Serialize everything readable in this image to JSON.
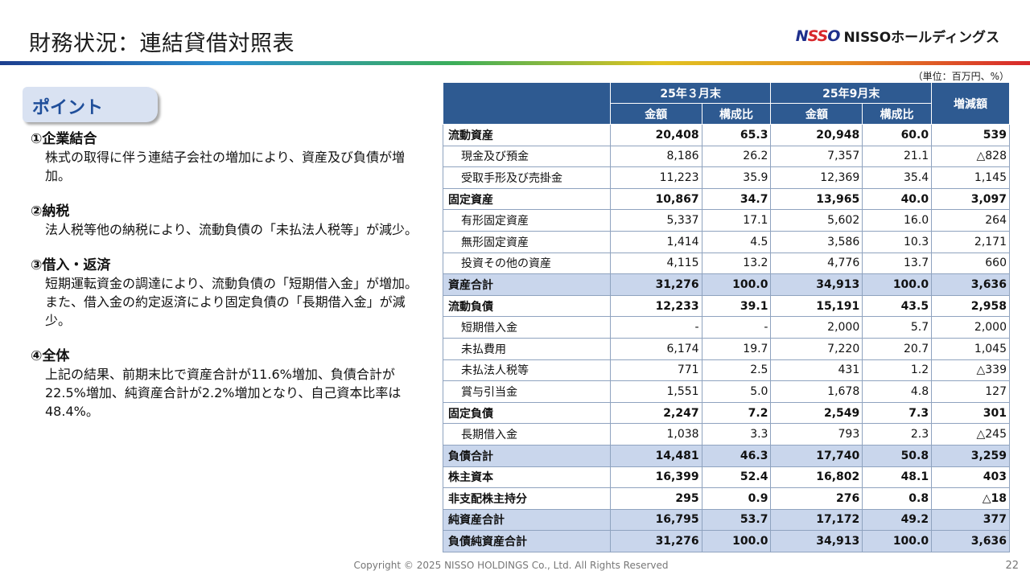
{
  "header": {
    "title": "財務状況：連結貸借対照表",
    "logo_mark_1": "N",
    "logo_mark_2": "SS",
    "logo_mark_3": "O",
    "logo_text": "NISSOホールディングス"
  },
  "unit": "（単位：百万円、%）",
  "points": {
    "tab_label": "ポイント",
    "items": [
      {
        "heading": "①企業結合",
        "body": "株式の取得に伴う連結子会社の増加により、資産及び負債が増加。"
      },
      {
        "heading": "②納税",
        "body": "法人税等他の納税により、流動負債の「未払法人税等」が減少。"
      },
      {
        "heading": "③借入・返済",
        "body": "短期運転資金の調達により、流動負債の「短期借入金」が増加。また、借入金の約定返済により固定負債の「長期借入金」が減少。"
      },
      {
        "heading": "④全体",
        "body": "上記の結果、前期末比で資産合計が11.6%増加、負債合計が22.5%増加、純資産合計が2.2%増加となり、自己資本比率は48.4%。"
      }
    ]
  },
  "table": {
    "period1": "25年３月末",
    "period2": "25年9月末",
    "change": "増減額",
    "amount": "金額",
    "ratio": "構成比",
    "rows": [
      {
        "label": "流動資産",
        "a1": "20,408",
        "r1": "65.3",
        "a2": "20,948",
        "r2": "60.0",
        "d": "539",
        "style": "bold"
      },
      {
        "label": "現金及び預金",
        "a1": "8,186",
        "r1": "26.2",
        "a2": "7,357",
        "r2": "21.1",
        "d": "△828",
        "style": "sub"
      },
      {
        "label": "受取手形及び売掛金",
        "a1": "11,223",
        "r1": "35.9",
        "a2": "12,369",
        "r2": "35.4",
        "d": "1,145",
        "style": "sub"
      },
      {
        "label": "固定資産",
        "a1": "10,867",
        "r1": "34.7",
        "a2": "13,965",
        "r2": "40.0",
        "d": "3,097",
        "style": "bold"
      },
      {
        "label": "有形固定資産",
        "a1": "5,337",
        "r1": "17.1",
        "a2": "5,602",
        "r2": "16.0",
        "d": "264",
        "style": "sub"
      },
      {
        "label": "無形固定資産",
        "a1": "1,414",
        "r1": "4.5",
        "a2": "3,586",
        "r2": "10.3",
        "d": "2,171",
        "style": "sub"
      },
      {
        "label": "投資その他の資産",
        "a1": "4,115",
        "r1": "13.2",
        "a2": "4,776",
        "r2": "13.7",
        "d": "660",
        "style": "sub"
      },
      {
        "label": "資産合計",
        "a1": "31,276",
        "r1": "100.0",
        "a2": "34,913",
        "r2": "100.0",
        "d": "3,636",
        "style": "total"
      },
      {
        "label": "流動負債",
        "a1": "12,233",
        "r1": "39.1",
        "a2": "15,191",
        "r2": "43.5",
        "d": "2,958",
        "style": "bold"
      },
      {
        "label": "短期借入金",
        "a1": "-",
        "r1": "-",
        "a2": "2,000",
        "r2": "5.7",
        "d": "2,000",
        "style": "sub"
      },
      {
        "label": "未払費用",
        "a1": "6,174",
        "r1": "19.7",
        "a2": "7,220",
        "r2": "20.7",
        "d": "1,045",
        "style": "sub"
      },
      {
        "label": "未払法人税等",
        "a1": "771",
        "r1": "2.5",
        "a2": "431",
        "r2": "1.2",
        "d": "△339",
        "style": "sub"
      },
      {
        "label": "賞与引当金",
        "a1": "1,551",
        "r1": "5.0",
        "a2": "1,678",
        "r2": "4.8",
        "d": "127",
        "style": "sub"
      },
      {
        "label": "固定負債",
        "a1": "2,247",
        "r1": "7.2",
        "a2": "2,549",
        "r2": "7.3",
        "d": "301",
        "style": "bold"
      },
      {
        "label": "長期借入金",
        "a1": "1,038",
        "r1": "3.3",
        "a2": "793",
        "r2": "2.3",
        "d": "△245",
        "style": "sub"
      },
      {
        "label": "負債合計",
        "a1": "14,481",
        "r1": "46.3",
        "a2": "17,740",
        "r2": "50.8",
        "d": "3,259",
        "style": "total"
      },
      {
        "label": "株主資本",
        "a1": "16,399",
        "r1": "52.4",
        "a2": "16,802",
        "r2": "48.1",
        "d": "403",
        "style": "bold"
      },
      {
        "label": "非支配株主持分",
        "a1": "295",
        "r1": "0.9",
        "a2": "276",
        "r2": "0.8",
        "d": "△18",
        "style": "bold"
      },
      {
        "label": "純資産合計",
        "a1": "16,795",
        "r1": "53.7",
        "a2": "17,172",
        "r2": "49.2",
        "d": "377",
        "style": "total"
      },
      {
        "label": "負債純資産合計",
        "a1": "31,276",
        "r1": "100.0",
        "a2": "34,913",
        "r2": "100.0",
        "d": "3,636",
        "style": "total"
      }
    ]
  },
  "footer": {
    "copyright": "Copyright © 2025 NISSO HOLDINGS Co., Ltd. All Rights Reserved",
    "page": "22"
  }
}
